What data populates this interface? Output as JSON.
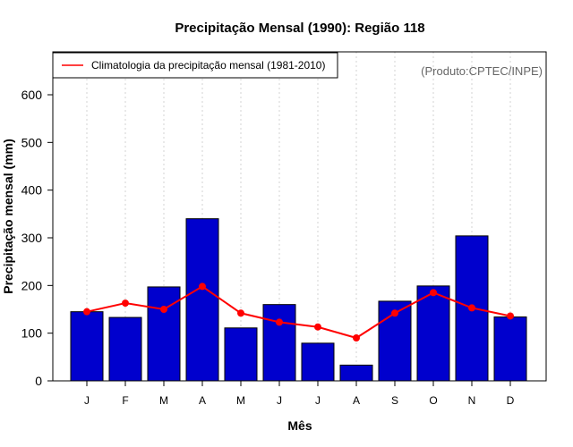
{
  "chart_data": {
    "type": "bar",
    "title": "Precipitação Mensal (1990): Região 118",
    "xlabel": "Mês",
    "ylabel": "Precipitação mensal (mm)",
    "categories": [
      "J",
      "F",
      "M",
      "A",
      "M",
      "J",
      "J",
      "A",
      "S",
      "O",
      "N",
      "D"
    ],
    "ylim": [
      0,
      690
    ],
    "yticks": [
      0,
      100,
      200,
      300,
      400,
      500,
      600
    ],
    "grid": "vertical dotted",
    "series": [
      {
        "name": "Precipitação mensal (1990)",
        "kind": "bar",
        "color": "#0000CD",
        "values": [
          145,
          133,
          197,
          340,
          111,
          160,
          79,
          33,
          167,
          199,
          304,
          134
        ]
      },
      {
        "name": "Climatologia da precipitação mensal (1981-2010)",
        "kind": "line",
        "color": "#FF0000",
        "values": [
          145,
          163,
          150,
          198,
          142,
          123,
          113,
          90,
          142,
          185,
          153,
          136
        ]
      }
    ],
    "legend": {
      "position": "top-left",
      "label": "Climatologia da precipitação mensal (1981-2010)"
    },
    "credit": "(Produto:CPTEC/INPE)"
  }
}
